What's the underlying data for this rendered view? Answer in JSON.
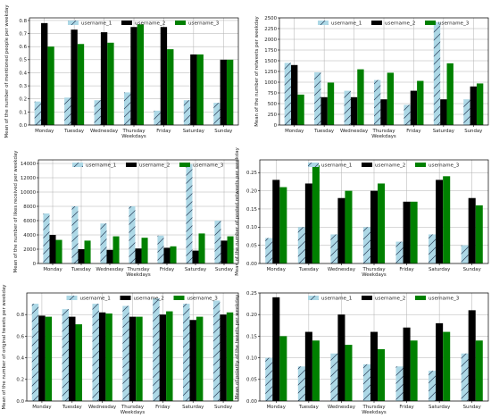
{
  "chart_data": [
    {
      "type": "bar",
      "ylabel": "Mean of the number of mentioned people per weekday",
      "xlabel": "Weekdays",
      "categories": [
        "Monday",
        "Tuesday",
        "Wednesday",
        "Thursday",
        "Friday",
        "Saturday",
        "Sunday"
      ],
      "ylim": [
        0,
        0.82
      ],
      "yticks": [
        0.0,
        0.1,
        0.2,
        0.3,
        0.4,
        0.5,
        0.6,
        0.7,
        0.8
      ],
      "ytick_labels": [
        "0.0",
        "0.1",
        "0.2",
        "0.3",
        "0.4",
        "0.5",
        "0.6",
        "0.7",
        "0.8"
      ],
      "grid": true,
      "legend_position": "top",
      "series": [
        {
          "name": "username_1",
          "values": [
            0.18,
            0.21,
            0.19,
            0.25,
            0.11,
            0.19,
            0.17
          ]
        },
        {
          "name": "username_2",
          "values": [
            0.78,
            0.73,
            0.71,
            0.75,
            0.75,
            0.54,
            0.5
          ]
        },
        {
          "name": "username_3",
          "values": [
            0.6,
            0.62,
            0.63,
            0.77,
            0.58,
            0.54,
            0.5
          ]
        }
      ]
    },
    {
      "type": "bar",
      "ylabel": "Mean of the number of retweets per weekday",
      "xlabel": "Weekdays",
      "categories": [
        "Monday",
        "Tuesday",
        "Wednesday",
        "Thursday",
        "Friday",
        "Saturday",
        "Sunday"
      ],
      "ylim": [
        0,
        2500
      ],
      "yticks": [
        0,
        250,
        500,
        750,
        1000,
        1250,
        1500,
        1750,
        2000,
        2250,
        2500
      ],
      "ytick_labels": [
        "0",
        "250",
        "500",
        "750",
        "1000",
        "1250",
        "1500",
        "1750",
        "2000",
        "2250",
        "2500"
      ],
      "grid": true,
      "legend_position": "top",
      "series": [
        {
          "name": "username_1",
          "values": [
            1450,
            1230,
            800,
            1050,
            470,
            2400,
            600
          ]
        },
        {
          "name": "username_2",
          "values": [
            1400,
            650,
            650,
            600,
            800,
            600,
            900
          ]
        },
        {
          "name": "username_3",
          "values": [
            710,
            990,
            1300,
            1220,
            1030,
            1440,
            970
          ]
        }
      ]
    },
    {
      "type": "bar",
      "ylabel": "Mean of the number of likes received per weekday",
      "xlabel": "Weekdays",
      "categories": [
        "Monday",
        "Tuesday",
        "Wednesday",
        "Thursday",
        "Friday",
        "Saturday",
        "Sunday"
      ],
      "ylim": [
        0,
        14500
      ],
      "yticks": [
        0,
        2000,
        4000,
        6000,
        8000,
        10000,
        12000,
        14000
      ],
      "ytick_labels": [
        "0",
        "2000",
        "4000",
        "6000",
        "8000",
        "10000",
        "12000",
        "14000"
      ],
      "grid": true,
      "legend_position": "top",
      "series": [
        {
          "name": "username_1",
          "values": [
            7000,
            8000,
            5600,
            8000,
            3900,
            13900,
            6000
          ]
        },
        {
          "name": "username_2",
          "values": [
            4000,
            2000,
            1900,
            2100,
            2200,
            1800,
            3200
          ]
        },
        {
          "name": "username_3",
          "values": [
            3300,
            3200,
            3800,
            3600,
            2400,
            4200,
            3800
          ]
        }
      ]
    },
    {
      "type": "bar",
      "ylabel": "Mean of the number of posted retweets per weekday",
      "xlabel": "Weekdays",
      "categories": [
        "Monday",
        "Tuesday",
        "Wednesday",
        "Thursday",
        "Friday",
        "Saturday",
        "Sunday"
      ],
      "ylim": [
        0,
        0.285
      ],
      "yticks": [
        0.0,
        0.05,
        0.1,
        0.15,
        0.2,
        0.25
      ],
      "ytick_labels": [
        "0.00",
        "0.05",
        "0.10",
        "0.15",
        "0.20",
        "0.25"
      ],
      "grid": true,
      "legend_position": "top",
      "series": [
        {
          "name": "username_1",
          "values": [
            0.07,
            0.1,
            0.08,
            0.1,
            0.06,
            0.08,
            0.05
          ]
        },
        {
          "name": "username_2",
          "values": [
            0.23,
            0.22,
            0.18,
            0.2,
            0.17,
            0.23,
            0.18
          ]
        },
        {
          "name": "username_3",
          "values": [
            0.21,
            0.27,
            0.2,
            0.22,
            0.17,
            0.24,
            0.16
          ]
        }
      ]
    },
    {
      "type": "bar",
      "ylabel": "Mean of the number of original tweets per weekday",
      "xlabel": "Weekdays",
      "categories": [
        "Monday",
        "Tuesday",
        "Wednesday",
        "Thursday",
        "Friday",
        "Saturday",
        "Sunday"
      ],
      "ylim": [
        0,
        1.0
      ],
      "yticks": [
        0.0,
        0.2,
        0.4,
        0.6,
        0.8
      ],
      "ytick_labels": [
        "0.0",
        "0.2",
        "0.4",
        "0.6",
        "0.8"
      ],
      "grid": true,
      "legend_position": "top",
      "series": [
        {
          "name": "username_1",
          "values": [
            0.9,
            0.85,
            0.9,
            0.88,
            0.95,
            0.9,
            0.93
          ]
        },
        {
          "name": "username_2",
          "values": [
            0.79,
            0.78,
            0.82,
            0.78,
            0.8,
            0.75,
            0.8
          ]
        },
        {
          "name": "username_3",
          "values": [
            0.78,
            0.71,
            0.81,
            0.78,
            0.83,
            0.78,
            0.82
          ]
        }
      ]
    },
    {
      "type": "bar",
      "ylabel": "Mean of polarity of the tweets per weekday",
      "xlabel": "Weekdays",
      "categories": [
        "Monday",
        "Tuesday",
        "Wednesday",
        "Thursday",
        "Friday",
        "Saturday",
        "Sunday"
      ],
      "ylim": [
        0,
        0.25
      ],
      "yticks": [
        0.0,
        0.05,
        0.1,
        0.15,
        0.2,
        0.25
      ],
      "ytick_labels": [
        "0.00",
        "0.05",
        "0.10",
        "0.15",
        "0.20",
        "0.25"
      ],
      "grid": true,
      "legend_position": "top",
      "series": [
        {
          "name": "username_1",
          "values": [
            0.1,
            0.08,
            0.11,
            0.085,
            0.08,
            0.07,
            0.11
          ]
        },
        {
          "name": "username_2",
          "values": [
            0.24,
            0.16,
            0.2,
            0.16,
            0.17,
            0.18,
            0.21
          ]
        },
        {
          "name": "username_3",
          "values": [
            0.15,
            0.14,
            0.13,
            0.12,
            0.14,
            0.16,
            0.14
          ]
        }
      ]
    }
  ],
  "colors": {
    "username_1": "#add8e6",
    "username_2": "#000000",
    "username_3": "#008000",
    "grid": "#b0b0b0",
    "axis": "#000000"
  }
}
